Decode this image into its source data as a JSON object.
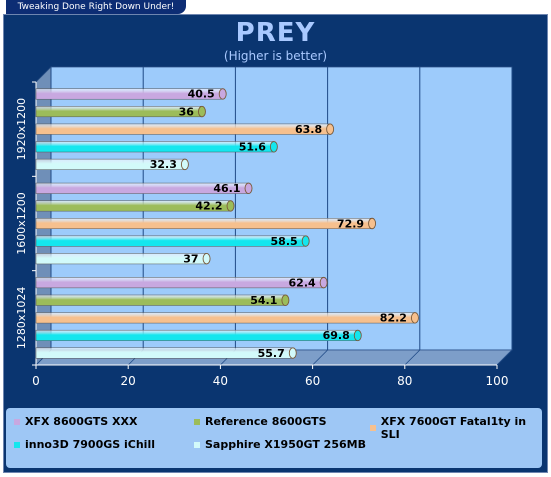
{
  "header": {
    "tab_text": "Tweaking Done Right Down Under!"
  },
  "chart_data": {
    "type": "bar",
    "orientation": "horizontal",
    "title": "PREY",
    "subtitle": "(Higher is better)",
    "xlabel": "",
    "ylabel": "",
    "xlim": [
      0,
      100
    ],
    "x_ticks": [
      "0",
      "20",
      "40",
      "60",
      "80",
      "100"
    ],
    "grid": true,
    "legend_position": "bottom",
    "categories": [
      "1920x1200",
      "1600x1200",
      "1280x1024"
    ],
    "series": [
      {
        "name": "XFX 8600GTS XXX",
        "color": "#c8a8e0",
        "values": [
          40.5,
          46.1,
          62.4
        ]
      },
      {
        "name": "Reference 8600GTS",
        "color": "#9cbc5a",
        "values": [
          36,
          42.2,
          54.1
        ]
      },
      {
        "name": "XFX 7600GT Fatal1ty in SLI",
        "color": "#f6c08e",
        "values": [
          63.8,
          72.9,
          82.2
        ]
      },
      {
        "name": "inno3D 7900GS iChill",
        "color": "#14e6ee",
        "values": [
          51.6,
          58.5,
          69.8
        ]
      },
      {
        "name": "Sapphire X1950GT 256MB",
        "color": "#d2fafa",
        "values": [
          32.3,
          37,
          55.7
        ]
      }
    ]
  }
}
